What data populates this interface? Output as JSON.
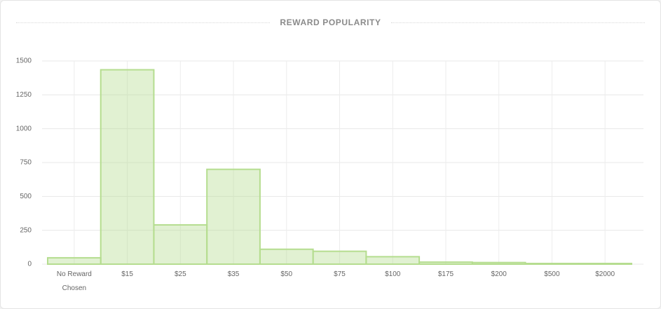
{
  "chart_data": {
    "type": "bar",
    "title": "REWARD POPULARITY",
    "categories": [
      "No Reward Chosen",
      "$15",
      "$25",
      "$35",
      "$50",
      "$75",
      "$100",
      "$175",
      "$200",
      "$500",
      "$2000"
    ],
    "values": [
      47,
      1435,
      290,
      700,
      110,
      95,
      55,
      15,
      12,
      5,
      5
    ],
    "color": "#b5dd8f",
    "ylim": [
      0,
      1500
    ],
    "yticks": [
      0,
      250,
      500,
      750,
      1000,
      1250,
      1500
    ],
    "grid": true
  }
}
